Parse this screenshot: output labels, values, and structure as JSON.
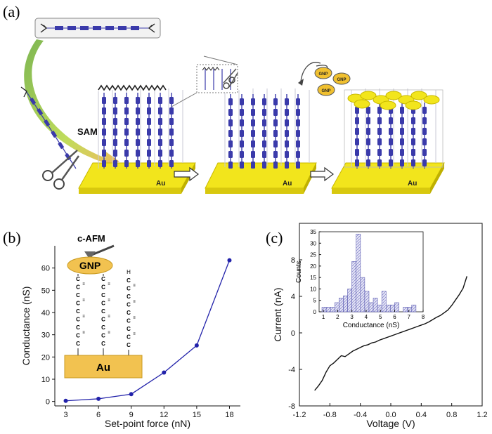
{
  "panels": {
    "a": {
      "label": "(a)",
      "sam_label": "SAM",
      "au_label": "Au",
      "gnp_label": "GNP"
    },
    "b": {
      "label": "(b)",
      "afm_label": "c-AFM",
      "gnp_label": "GNP",
      "au_label": "Au",
      "wire_labels": {
        "h_top": "H",
        "c_letter": "C",
        "triple_bond": "≡"
      }
    },
    "c": {
      "label": "(c)"
    }
  },
  "colors": {
    "molecule_blue": "#3a3aaa",
    "gold": "#f2e51c",
    "gold_dark": "#c8b800",
    "gnp_fill": "#f0c030",
    "line_blue": "#2222aa",
    "hist_fill": "#c8c8ea",
    "arrow_green": "#9cc23a"
  },
  "chart_data": [
    {
      "type": "line",
      "panel": "b",
      "x": [
        3,
        6,
        9,
        12,
        15,
        18
      ],
      "y": [
        0.3,
        1.2,
        3.3,
        13.0,
        25.2,
        63.5
      ],
      "xlabel": "Set-point force (nN)",
      "ylabel": "Conductance (nS)",
      "xticks": [
        "3",
        "6",
        "9",
        "12",
        "15",
        "18"
      ],
      "yticks": [
        "0",
        "10",
        "20",
        "30",
        "40",
        "50",
        "60"
      ],
      "xlim": [
        2,
        19
      ],
      "ylim": [
        -2,
        70
      ],
      "markers": true
    },
    {
      "type": "line",
      "panel": "c",
      "xlabel": "Voltage (V)",
      "ylabel": "Current (nA)",
      "xticks": [
        "-1.2",
        "-0.8",
        "-0.4",
        "0.0",
        "0.4",
        "0.8",
        "1.2"
      ],
      "yticks": [
        "-8",
        "-4",
        "0",
        "4",
        "8"
      ],
      "xlim": [
        -1.2,
        1.2
      ],
      "ylim": [
        -8,
        12
      ],
      "x": [
        -1.0,
        -0.95,
        -0.9,
        -0.85,
        -0.8,
        -0.75,
        -0.7,
        -0.65,
        -0.6,
        -0.55,
        -0.5,
        -0.45,
        -0.4,
        -0.35,
        -0.3,
        -0.25,
        -0.2,
        -0.15,
        -0.1,
        -0.05,
        0.0,
        0.05,
        0.1,
        0.15,
        0.2,
        0.25,
        0.3,
        0.35,
        0.4,
        0.45,
        0.5,
        0.55,
        0.6,
        0.65,
        0.7,
        0.75,
        0.8,
        0.85,
        0.9,
        0.95,
        1.0
      ],
      "y": [
        -6.3,
        -5.8,
        -5.2,
        -4.3,
        -3.6,
        -3.3,
        -2.9,
        -2.5,
        -2.6,
        -2.3,
        -2.0,
        -1.8,
        -1.6,
        -1.4,
        -1.3,
        -1.1,
        -1.0,
        -0.8,
        -0.65,
        -0.5,
        -0.35,
        -0.2,
        -0.05,
        0.1,
        0.25,
        0.4,
        0.55,
        0.7,
        0.85,
        1.0,
        1.2,
        1.45,
        1.7,
        1.9,
        2.2,
        2.5,
        3.0,
        3.6,
        4.2,
        4.9,
        6.2
      ]
    },
    {
      "type": "bar",
      "panel": "c-inset",
      "xlabel": "Conductance (nS)",
      "ylabel": "Counts",
      "xticks": [
        "1",
        "2",
        "3",
        "4",
        "5",
        "6",
        "7",
        "8"
      ],
      "yticks": [
        "0",
        "5",
        "10",
        "15",
        "20",
        "25",
        "30",
        "35"
      ],
      "xlim": [
        0.7,
        8.0
      ],
      "ylim": [
        0,
        35
      ],
      "bin_width": 0.3,
      "bin_starts": [
        0.9,
        1.2,
        1.5,
        1.8,
        2.1,
        2.4,
        2.7,
        3.0,
        3.3,
        3.6,
        3.9,
        4.2,
        4.5,
        4.8,
        5.1,
        5.4,
        5.7,
        6.0,
        6.3,
        6.6,
        6.9,
        7.2
      ],
      "values": [
        2,
        2,
        2,
        4,
        6,
        7,
        10,
        22,
        34,
        15,
        9,
        4,
        6,
        3,
        9,
        3,
        3,
        4,
        0,
        2,
        2,
        3
      ]
    }
  ]
}
